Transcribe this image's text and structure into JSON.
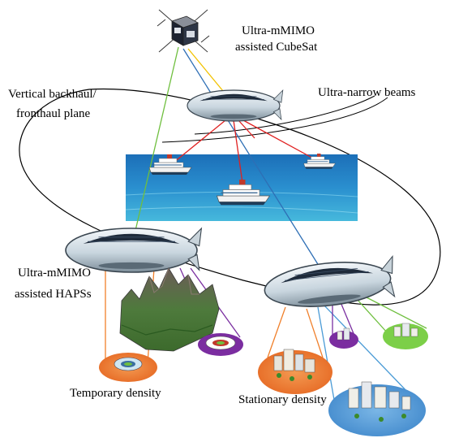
{
  "labels": {
    "cubesat_line1": "Ultra-mMIMO",
    "cubesat_line2": "assisted CubeSat",
    "plane_line1": "Vertical backhaul/",
    "plane_line2": "fronthaul plane",
    "beams": "Ultra-narrow beams",
    "haps_line1": "Ultra-mMIMO",
    "haps_line2": "assisted HAPSs",
    "temporary": "Temporary density",
    "stationary": "Stationary density"
  },
  "colors": {
    "link_green": "#6fbf3f",
    "link_yellow": "#f2c200",
    "link_blue": "#2e6fb5",
    "link_red": "#e02020",
    "link_orange": "#f07f2a",
    "link_purple": "#7a2fa0",
    "link_lightblue": "#4a9bd6",
    "sea_top": "#1c6fb8",
    "sea_bottom": "#3fb0d8",
    "orange_zone": "#ee7a2e",
    "blue_zone": "#5a9fd8",
    "purple_zone": "#7b2da0",
    "green_zone": "#7ccf48"
  },
  "icons": [
    "cubesat-icon",
    "airship-icon",
    "cruise-ship-icon",
    "mountain-icon",
    "stadium-icon",
    "city-icon"
  ]
}
